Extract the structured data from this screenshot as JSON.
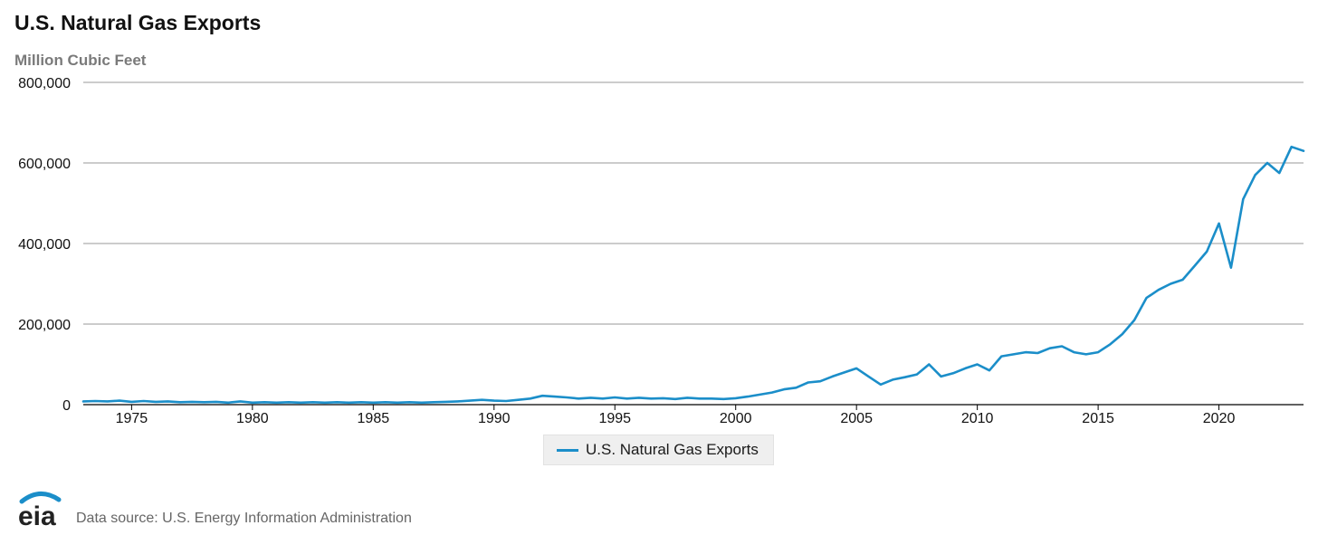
{
  "title": "U.S. Natural Gas Exports",
  "subtitle": "Million Cubic Feet",
  "legend_label": "U.S. Natural Gas Exports",
  "source": "Data source: U.S. Energy Information Administration",
  "logo_text": "eia",
  "colors": {
    "line": "#1b8ec9",
    "grid": "#9a9a9a",
    "axis": "#000000",
    "logo": "#1b8ec9",
    "subtitle": "#7a7a7a"
  },
  "chart_data": {
    "type": "line",
    "title": "U.S. Natural Gas Exports",
    "ylabel": "Million Cubic Feet",
    "xlabel": "",
    "xlim": [
      1973,
      2023.5
    ],
    "ylim": [
      0,
      800000
    ],
    "yticks": [
      0,
      200000,
      400000,
      600000,
      800000
    ],
    "ytick_labels": [
      "0",
      "200,000",
      "400,000",
      "600,000",
      "800,000"
    ],
    "xticks": [
      1975,
      1980,
      1985,
      1990,
      1995,
      2000,
      2005,
      2010,
      2015,
      2020
    ],
    "xtick_labels": [
      "1975",
      "1980",
      "1985",
      "1990",
      "1995",
      "2000",
      "2005",
      "2010",
      "2015",
      "2020"
    ],
    "grid": true,
    "legend_position": "bottom-center",
    "series": [
      {
        "name": "U.S. Natural Gas Exports",
        "x": [
          1973.0,
          1973.5,
          1974.0,
          1974.5,
          1975.0,
          1975.5,
          1976.0,
          1976.5,
          1977.0,
          1977.5,
          1978.0,
          1978.5,
          1979.0,
          1979.5,
          1980.0,
          1980.5,
          1981.0,
          1981.5,
          1982.0,
          1982.5,
          1983.0,
          1983.5,
          1984.0,
          1984.5,
          1985.0,
          1985.5,
          1986.0,
          1986.5,
          1987.0,
          1987.5,
          1988.0,
          1988.5,
          1989.0,
          1989.5,
          1990.0,
          1990.5,
          1991.0,
          1991.5,
          1992.0,
          1992.5,
          1993.0,
          1993.5,
          1994.0,
          1994.5,
          1995.0,
          1995.5,
          1996.0,
          1996.5,
          1997.0,
          1997.5,
          1998.0,
          1998.5,
          1999.0,
          1999.5,
          2000.0,
          2000.5,
          2001.0,
          2001.5,
          2002.0,
          2002.5,
          2003.0,
          2003.5,
          2004.0,
          2004.5,
          2005.0,
          2005.5,
          2006.0,
          2006.5,
          2007.0,
          2007.5,
          2008.0,
          2008.5,
          2009.0,
          2009.5,
          2010.0,
          2010.5,
          2011.0,
          2011.5,
          2012.0,
          2012.5,
          2013.0,
          2013.5,
          2014.0,
          2014.5,
          2015.0,
          2015.5,
          2016.0,
          2016.5,
          2017.0,
          2017.5,
          2018.0,
          2018.5,
          2019.0,
          2019.5,
          2020.0,
          2020.5,
          2021.0,
          2021.5,
          2022.0,
          2022.5,
          2023.0,
          2023.5
        ],
        "values": [
          8000,
          9000,
          8000,
          10000,
          7000,
          9000,
          7000,
          8000,
          6000,
          7000,
          6000,
          7000,
          5000,
          8000,
          5000,
          6000,
          5000,
          6000,
          5000,
          6000,
          5000,
          6000,
          5000,
          6000,
          5000,
          6000,
          5000,
          6000,
          5000,
          6000,
          7000,
          8000,
          10000,
          12000,
          10000,
          9000,
          12000,
          15000,
          22000,
          20000,
          18000,
          15000,
          17000,
          15000,
          18000,
          15000,
          17000,
          15000,
          16000,
          14000,
          17000,
          15000,
          15000,
          14000,
          16000,
          20000,
          25000,
          30000,
          38000,
          42000,
          55000,
          58000,
          70000,
          80000,
          90000,
          70000,
          50000,
          62000,
          68000,
          75000,
          100000,
          70000,
          78000,
          90000,
          100000,
          85000,
          120000,
          125000,
          130000,
          128000,
          140000,
          145000,
          130000,
          125000,
          130000,
          150000,
          175000,
          210000,
          265000,
          285000,
          300000,
          310000,
          345000,
          380000,
          450000,
          340000,
          510000,
          570000,
          600000,
          575000,
          640000,
          630000
        ]
      }
    ]
  }
}
